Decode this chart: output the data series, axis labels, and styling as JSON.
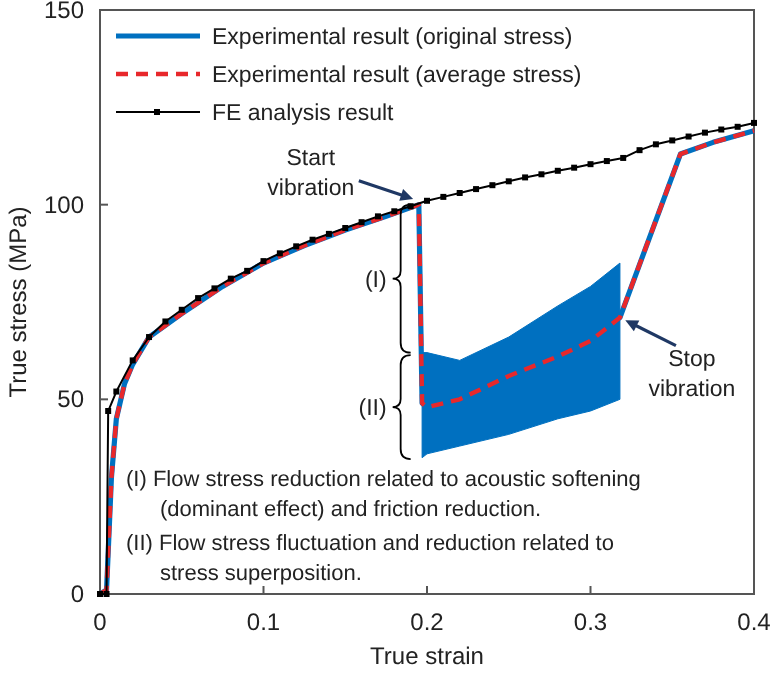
{
  "chart_data": {
    "type": "line",
    "xlabel": "True strain",
    "ylabel": "True stress (MPa)",
    "xlim": [
      0,
      0.4
    ],
    "xticks": [
      0,
      0.1,
      0.2,
      0.3,
      0.4
    ],
    "ylim": [
      0,
      150
    ],
    "yticks": [
      0,
      50,
      100,
      150
    ],
    "grid": false,
    "legend": "top left",
    "series": [
      {
        "name": "Experimental result (original stress)",
        "color": "#0070c0",
        "line_style": "solid",
        "marker": "none",
        "x": [
          0,
          0.004,
          0.007,
          0.01,
          0.015,
          0.02,
          0.03,
          0.04,
          0.05,
          0.075,
          0.1,
          0.125,
          0.15,
          0.175,
          0.195,
          0.197,
          0.2,
          0.22,
          0.25,
          0.28,
          0.3,
          0.318,
          0.355,
          0.375,
          0.4
        ],
        "values": [
          0,
          1,
          30,
          45,
          54,
          59,
          66,
          69,
          72,
          79,
          85,
          89.5,
          93.5,
          97,
          100,
          49,
          48,
          50,
          56,
          61,
          65,
          71,
          113,
          116,
          119
        ],
        "lower": [
          null,
          null,
          null,
          null,
          null,
          null,
          null,
          null,
          null,
          null,
          null,
          null,
          null,
          null,
          null,
          35,
          36,
          38,
          41,
          45,
          47,
          50,
          null,
          null,
          null
        ],
        "upper": [
          null,
          null,
          null,
          null,
          null,
          null,
          null,
          null,
          null,
          null,
          null,
          null,
          null,
          null,
          null,
          62,
          62,
          60,
          66,
          74,
          79,
          85,
          null,
          null,
          null
        ]
      },
      {
        "name": "Experimental result (average stress)",
        "color": "#e8282b",
        "line_style": "dashed",
        "marker": "none",
        "x": [
          0,
          0.004,
          0.007,
          0.01,
          0.015,
          0.02,
          0.03,
          0.04,
          0.05,
          0.075,
          0.1,
          0.125,
          0.15,
          0.175,
          0.195,
          0.197,
          0.2,
          0.22,
          0.25,
          0.28,
          0.3,
          0.318,
          0.355,
          0.375,
          0.4
        ],
        "values": [
          0,
          1,
          30,
          45,
          54,
          59,
          66,
          69,
          72,
          79,
          85,
          89.5,
          93.5,
          97,
          100,
          49,
          48,
          50,
          56,
          61,
          65,
          71,
          113,
          116,
          119
        ]
      },
      {
        "name": "FE analysis result",
        "color": "#000000",
        "line_style": "solid",
        "marker": "square",
        "x": [
          0,
          0.004,
          0.005,
          0.01,
          0.02,
          0.03,
          0.04,
          0.05,
          0.06,
          0.07,
          0.08,
          0.09,
          0.1,
          0.11,
          0.12,
          0.13,
          0.14,
          0.15,
          0.16,
          0.17,
          0.18,
          0.19,
          0.2,
          0.21,
          0.22,
          0.23,
          0.24,
          0.25,
          0.26,
          0.27,
          0.28,
          0.29,
          0.3,
          0.31,
          0.32,
          0.33,
          0.34,
          0.35,
          0.36,
          0.37,
          0.38,
          0.39,
          0.4
        ],
        "values": [
          0,
          0,
          47,
          52,
          60,
          66,
          70,
          73,
          76,
          78.5,
          81,
          83,
          85.5,
          87.5,
          89.3,
          91,
          92.5,
          94,
          95.5,
          97,
          98.3,
          99.6,
          101,
          102,
          103,
          104,
          105,
          106,
          107,
          107.8,
          108.7,
          109.5,
          110.4,
          111.2,
          112,
          114,
          115.5,
          116.5,
          117.5,
          118.5,
          119.3,
          120,
          121
        ]
      }
    ],
    "annotations": [
      {
        "text": "Start vibration",
        "x": 0.195,
        "y": 101
      },
      {
        "text": "Stop vibration",
        "x": 0.318,
        "y": 71
      },
      {
        "text": "(I)",
        "x": 0.19,
        "y": 81
      },
      {
        "text": "(II)",
        "x": 0.19,
        "y": 48
      },
      "(I) Flow stress reduction related to acoustic softening (dominant effect) and friction reduction.",
      "(II) Flow stress fluctuation and reduction related to stress superposition."
    ]
  }
}
